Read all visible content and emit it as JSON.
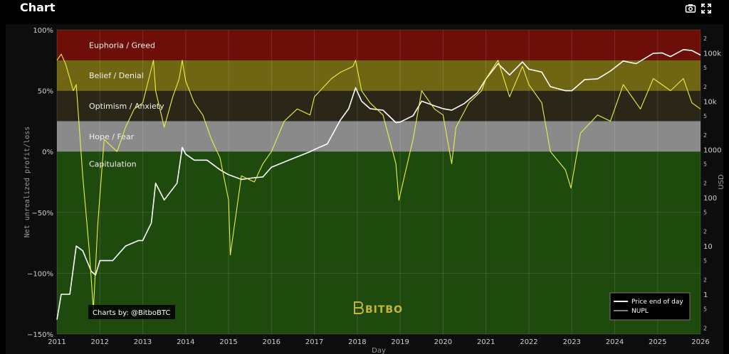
{
  "header": {
    "title": "Chart",
    "icons": [
      "camera-icon",
      "expand-icon"
    ]
  },
  "chart_data": {
    "type": "line",
    "title": "",
    "xlabel": "Day",
    "ylabel_left": "Net unrealized profit/loss",
    "ylabel_right": "USD",
    "xlim": [
      2011,
      2026
    ],
    "ylim_left": [
      -150,
      100
    ],
    "x_ticks": [
      "2011",
      "2012",
      "2013",
      "2014",
      "2015",
      "2016",
      "2017",
      "2018",
      "2019",
      "2020",
      "2021",
      "2022",
      "2023",
      "2024",
      "2025",
      "2026"
    ],
    "y_ticks_left": [
      "100%",
      "50%",
      "0%",
      "−50%",
      "−100%",
      "−150%"
    ],
    "y_ticks_left_values": [
      100,
      50,
      0,
      -50,
      -100,
      -150
    ],
    "right_axis": {
      "scale": "log",
      "major_labels": [
        "100k",
        "10k",
        "1000",
        "100",
        "10",
        "1"
      ],
      "major_values": [
        100000,
        10000,
        1000,
        100,
        10,
        1
      ],
      "minor_labels": [
        "2",
        "5",
        "2",
        "5",
        "2",
        "5",
        "2",
        "5",
        "2",
        "5",
        "2",
        "5",
        "2"
      ],
      "minor_values": [
        200000,
        50000,
        20000,
        5000,
        2000,
        500,
        200,
        50,
        20,
        5,
        2,
        0.5,
        0.2
      ]
    },
    "zones": [
      {
        "name": "Euphoria / Greed",
        "from": 75,
        "to": 100,
        "color": "#6e0e08"
      },
      {
        "name": "Belief / Denial",
        "from": 50,
        "to": 75,
        "color": "#6f6512"
      },
      {
        "name": "Optimism / Anxiety",
        "from": 25,
        "to": 50,
        "color": "#2b2718"
      },
      {
        "name": "Hope / Fear",
        "from": 0,
        "to": 25,
        "color": "#8a8a8a"
      },
      {
        "name": "Capitulation",
        "from": -150,
        "to": 0,
        "color": "#1f4a0e"
      }
    ],
    "series": [
      {
        "name": "Price end of day",
        "axis": "right",
        "color": "#ffffff",
        "x": [
          2011.0,
          2011.1,
          2011.3,
          2011.45,
          2011.6,
          2011.8,
          2011.9,
          2012.0,
          2012.3,
          2012.6,
          2012.9,
          2013.0,
          2013.2,
          2013.3,
          2013.5,
          2013.8,
          2013.92,
          2014.0,
          2014.2,
          2014.5,
          2014.8,
          2015.0,
          2015.3,
          2015.6,
          2015.8,
          2016.0,
          2016.5,
          2016.9,
          2017.0,
          2017.3,
          2017.6,
          2017.8,
          2017.96,
          2018.1,
          2018.3,
          2018.6,
          2018.9,
          2019.0,
          2019.3,
          2019.5,
          2019.8,
          2020.0,
          2020.2,
          2020.5,
          2020.8,
          2021.0,
          2021.28,
          2021.55,
          2021.85,
          2022.0,
          2022.3,
          2022.5,
          2022.85,
          2023.0,
          2023.3,
          2023.6,
          2023.9,
          2024.2,
          2024.5,
          2024.9,
          2025.1,
          2025.3,
          2025.6,
          2025.8,
          2026.0
        ],
        "y": [
          0.3,
          1,
          1,
          10,
          8,
          3,
          2.5,
          5,
          5,
          10,
          13,
          13,
          30,
          200,
          90,
          200,
          1100,
          800,
          600,
          600,
          380,
          300,
          240,
          260,
          270,
          430,
          650,
          900,
          1000,
          1300,
          4000,
          7000,
          19000,
          10000,
          7000,
          6500,
          3600,
          3700,
          5000,
          10000,
          8000,
          7000,
          6500,
          9000,
          15000,
          29000,
          60000,
          35000,
          65000,
          46000,
          40000,
          20000,
          16500,
          16500,
          28000,
          29000,
          42000,
          68000,
          60000,
          98000,
          100000,
          84000,
          117000,
          112000,
          90000
        ]
      },
      {
        "name": "NUPL",
        "axis": "left",
        "color": "#e8f04a",
        "x": [
          2011.0,
          2011.1,
          2011.2,
          2011.3,
          2011.38,
          2011.45,
          2011.6,
          2011.75,
          2011.85,
          2011.95,
          2012.1,
          2012.4,
          2012.6,
          2012.8,
          2013.0,
          2013.25,
          2013.3,
          2013.5,
          2013.7,
          2013.85,
          2013.92,
          2014.0,
          2014.2,
          2014.4,
          2014.6,
          2014.8,
          2015.0,
          2015.04,
          2015.3,
          2015.6,
          2015.8,
          2016.0,
          2016.3,
          2016.6,
          2016.9,
          2017.0,
          2017.4,
          2017.6,
          2017.9,
          2017.96,
          2018.1,
          2018.3,
          2018.6,
          2018.9,
          2018.97,
          2019.1,
          2019.3,
          2019.5,
          2019.8,
          2020.0,
          2020.2,
          2020.3,
          2020.6,
          2020.9,
          2021.0,
          2021.28,
          2021.55,
          2021.85,
          2022.0,
          2022.3,
          2022.5,
          2022.85,
          2022.98,
          2023.2,
          2023.6,
          2023.9,
          2024.2,
          2024.6,
          2024.9,
          2025.1,
          2025.3,
          2025.6,
          2025.8,
          2026.0
        ],
        "y": [
          75,
          80,
          72,
          60,
          50,
          55,
          -20,
          -80,
          -130,
          -60,
          10,
          0,
          20,
          35,
          40,
          75,
          50,
          20,
          45,
          60,
          75,
          58,
          40,
          30,
          10,
          -5,
          -40,
          -85,
          -20,
          -25,
          -10,
          0,
          25,
          35,
          30,
          45,
          60,
          65,
          70,
          75,
          50,
          40,
          30,
          -10,
          -40,
          -20,
          10,
          50,
          35,
          30,
          -10,
          20,
          40,
          50,
          60,
          75,
          45,
          70,
          55,
          40,
          0,
          -15,
          -30,
          15,
          30,
          25,
          55,
          35,
          60,
          55,
          50,
          60,
          40,
          35
        ]
      }
    ],
    "legend": {
      "placement": "bottom-right",
      "items": [
        "Price end of day",
        "NUPL"
      ]
    },
    "annotations": {
      "credit": "Charts by: @BitboBTC",
      "watermark": "BITBO"
    },
    "grid": true
  }
}
